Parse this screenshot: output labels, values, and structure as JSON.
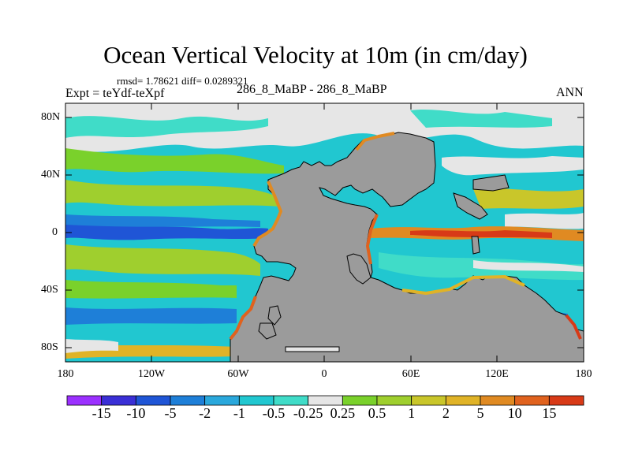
{
  "title": "Ocean Vertical Velocity at 10m (in cm/day)",
  "stats_line": "rmsd= 1.78621 diff= 0.0289321",
  "experiment_line": "Expt = teYdf-teXpf",
  "comparison_line": "286_8_MaBP - 286_8_MaBP",
  "season": "ANN",
  "lat_labels": [
    "80N",
    "40N",
    "0",
    "40S",
    "80S"
  ],
  "lon_labels": [
    "180",
    "120W",
    "60W",
    "0",
    "60E",
    "120E",
    "180"
  ],
  "colorbar": {
    "labels": [
      "-15",
      "-10",
      "-5",
      "-2",
      "-1",
      "-0.5",
      "-0.25",
      "0.25",
      "0.5",
      "1",
      "2",
      "5",
      "10",
      "15"
    ],
    "colors": [
      "#9b30ff",
      "#3a2fd6",
      "#1f55d6",
      "#1e7fd8",
      "#2aa8dc",
      "#21c7d0",
      "#40dcc8",
      "#e6e6e6",
      "#7ad12b",
      "#9fcf2e",
      "#c9c62a",
      "#e0b327",
      "#e08a22",
      "#e0621e",
      "#d83a17"
    ]
  },
  "colors": {
    "land": "#9b9b9b",
    "neutral_ocean": "#e6e6e6"
  }
}
